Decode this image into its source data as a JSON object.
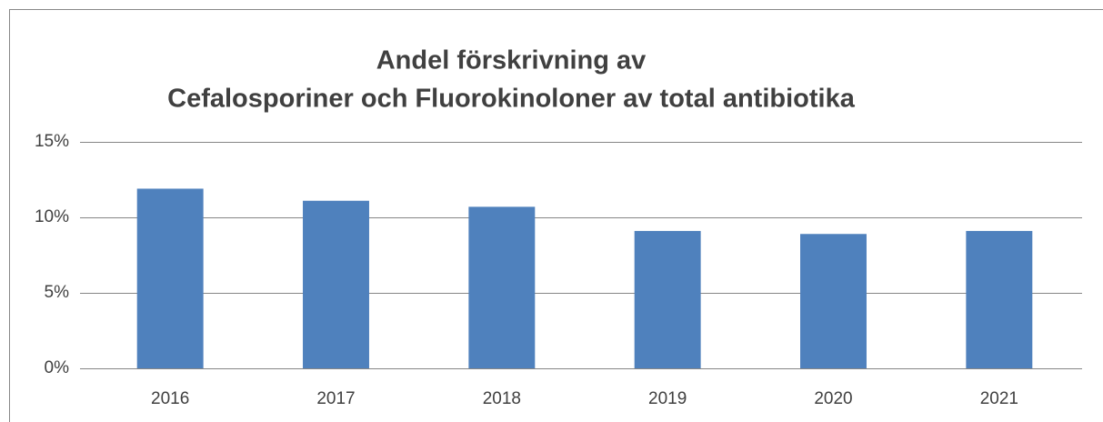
{
  "chart_data": {
    "type": "bar",
    "title": [
      "Andel förskrivning av",
      "Cefalosporiner och Fluorokinoloner av total antibiotika"
    ],
    "categories": [
      "2016",
      "2017",
      "2018",
      "2019",
      "2020",
      "2021"
    ],
    "values": [
      11.9,
      11.1,
      10.7,
      9.1,
      8.9,
      9.1
    ],
    "color": "#4f81bd",
    "ylim": [
      0,
      15
    ],
    "yticks": [
      {
        "value": 0,
        "label": "0%"
      },
      {
        "value": 5,
        "label": "5%"
      },
      {
        "value": 10,
        "label": "10%"
      },
      {
        "value": 15,
        "label": "15%"
      }
    ],
    "grid": true
  }
}
